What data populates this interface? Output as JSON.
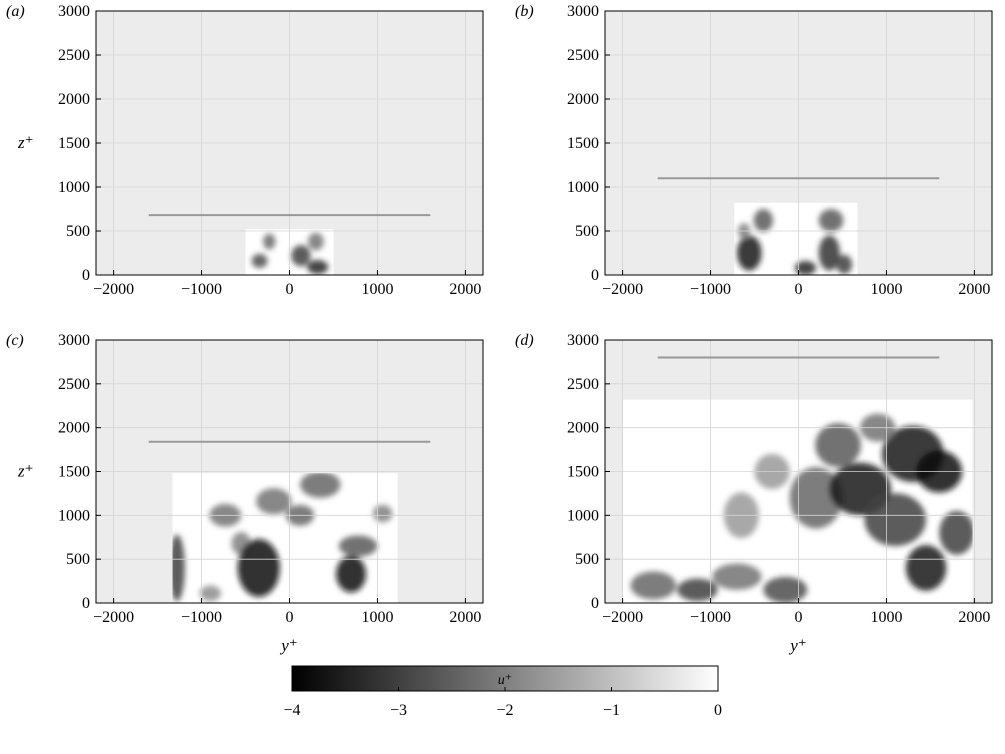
{
  "chart_data": [
    {
      "panel_label": "(a)",
      "type": "heatmap",
      "xlim": [
        -2200,
        2200
      ],
      "ylim": [
        0,
        3000
      ],
      "xticks": [
        -2000,
        -1000,
        0,
        1000,
        2000
      ],
      "yticks": [
        0,
        500,
        1000,
        1500,
        2000,
        2500,
        3000
      ],
      "xlabel": "",
      "ylabel": "z⁺",
      "data_region": {
        "y_range": [
          -500,
          500
        ],
        "z_range": [
          0,
          520
        ]
      },
      "reference_line": {
        "y_range": [
          -1600,
          1600
        ],
        "z": 680
      },
      "dark_patches": [
        {
          "y": -340,
          "z": 160,
          "ry": 90,
          "rz": 80,
          "u": -2.8
        },
        {
          "y": -230,
          "z": 380,
          "ry": 70,
          "rz": 90,
          "u": -2.4
        },
        {
          "y": 130,
          "z": 220,
          "ry": 110,
          "rz": 120,
          "u": -3.0
        },
        {
          "y": 320,
          "z": 90,
          "ry": 120,
          "rz": 80,
          "u": -3.4
        },
        {
          "y": 300,
          "z": 380,
          "ry": 90,
          "rz": 100,
          "u": -2.2
        }
      ]
    },
    {
      "panel_label": "(b)",
      "type": "heatmap",
      "xlim": [
        -2200,
        2200
      ],
      "ylim": [
        0,
        3000
      ],
      "xticks": [
        -2000,
        -1000,
        0,
        1000,
        2000
      ],
      "yticks": [
        0,
        500,
        1000,
        1500,
        2000,
        2500,
        3000
      ],
      "xlabel": "",
      "ylabel": "",
      "data_region": {
        "y_range": [
          -730,
          670
        ],
        "z_range": [
          0,
          820
        ]
      },
      "reference_line": {
        "y_range": [
          -1600,
          1600
        ],
        "z": 1100
      },
      "dark_patches": [
        {
          "y": -560,
          "z": 250,
          "ry": 140,
          "rz": 200,
          "u": -3.6
        },
        {
          "y": -400,
          "z": 620,
          "ry": 110,
          "rz": 130,
          "u": -2.6
        },
        {
          "y": -620,
          "z": 500,
          "ry": 70,
          "rz": 90,
          "u": -2.0
        },
        {
          "y": 80,
          "z": 80,
          "ry": 120,
          "rz": 80,
          "u": -3.4
        },
        {
          "y": 350,
          "z": 250,
          "ry": 120,
          "rz": 200,
          "u": -3.2
        },
        {
          "y": 370,
          "z": 620,
          "ry": 140,
          "rz": 130,
          "u": -2.6
        },
        {
          "y": 520,
          "z": 120,
          "ry": 90,
          "rz": 110,
          "u": -3.0
        }
      ]
    },
    {
      "panel_label": "(c)",
      "type": "heatmap",
      "xlim": [
        -2200,
        2200
      ],
      "ylim": [
        0,
        3000
      ],
      "xticks": [
        -2000,
        -1000,
        0,
        1000,
        2000
      ],
      "yticks": [
        0,
        500,
        1000,
        1500,
        2000,
        2500,
        3000
      ],
      "xlabel": "y⁺",
      "ylabel": "z⁺",
      "data_region": {
        "y_range": [
          -1330,
          1230
        ],
        "z_range": [
          0,
          1480
        ]
      },
      "reference_line": {
        "y_range": [
          -1600,
          1600
        ],
        "z": 1840
      },
      "dark_patches": [
        {
          "y": -1280,
          "z": 400,
          "ry": 90,
          "rz": 380,
          "u": -3.0
        },
        {
          "y": -730,
          "z": 1000,
          "ry": 180,
          "rz": 130,
          "u": -2.2
        },
        {
          "y": -550,
          "z": 680,
          "ry": 110,
          "rz": 130,
          "u": -2.0
        },
        {
          "y": -350,
          "z": 400,
          "ry": 240,
          "rz": 330,
          "u": -3.8
        },
        {
          "y": -180,
          "z": 1160,
          "ry": 200,
          "rz": 150,
          "u": -2.2
        },
        {
          "y": 120,
          "z": 1000,
          "ry": 160,
          "rz": 120,
          "u": -2.4
        },
        {
          "y": 350,
          "z": 1350,
          "ry": 230,
          "rz": 150,
          "u": -2.4
        },
        {
          "y": 780,
          "z": 650,
          "ry": 220,
          "rz": 120,
          "u": -2.6
        },
        {
          "y": 700,
          "z": 330,
          "ry": 170,
          "rz": 210,
          "u": -3.8
        },
        {
          "y": 1060,
          "z": 1020,
          "ry": 110,
          "rz": 100,
          "u": -2.0
        },
        {
          "y": -900,
          "z": 110,
          "ry": 120,
          "rz": 90,
          "u": -1.8
        }
      ]
    },
    {
      "panel_label": "(d)",
      "type": "heatmap",
      "xlim": [
        -2200,
        2200
      ],
      "ylim": [
        0,
        3000
      ],
      "xticks": [
        -2000,
        -1000,
        0,
        1000,
        2000
      ],
      "yticks": [
        0,
        500,
        1000,
        1500,
        2000,
        2500,
        3000
      ],
      "xlabel": "y⁺",
      "ylabel": "",
      "data_region": {
        "y_range": [
          -2000,
          1980
        ],
        "z_range": [
          0,
          2320
        ]
      },
      "reference_line": {
        "y_range": [
          -1600,
          1600
        ],
        "z": 2800
      },
      "dark_patches": [
        {
          "y": -1650,
          "z": 200,
          "ry": 260,
          "rz": 160,
          "u": -2.4
        },
        {
          "y": -1150,
          "z": 150,
          "ry": 230,
          "rz": 130,
          "u": -3.0
        },
        {
          "y": -700,
          "z": 300,
          "ry": 280,
          "rz": 150,
          "u": -2.2
        },
        {
          "y": -650,
          "z": 1000,
          "ry": 200,
          "rz": 260,
          "u": -1.6
        },
        {
          "y": -300,
          "z": 1500,
          "ry": 200,
          "rz": 200,
          "u": -1.6
        },
        {
          "y": -150,
          "z": 150,
          "ry": 250,
          "rz": 150,
          "u": -2.8
        },
        {
          "y": 200,
          "z": 1200,
          "ry": 300,
          "rz": 350,
          "u": -2.4
        },
        {
          "y": 450,
          "z": 1800,
          "ry": 260,
          "rz": 250,
          "u": -2.6
        },
        {
          "y": 700,
          "z": 1300,
          "ry": 350,
          "rz": 300,
          "u": -3.6
        },
        {
          "y": 1100,
          "z": 950,
          "ry": 350,
          "rz": 300,
          "u": -3.0
        },
        {
          "y": 1300,
          "z": 1700,
          "ry": 350,
          "rz": 320,
          "u": -3.6
        },
        {
          "y": 1600,
          "z": 1500,
          "ry": 260,
          "rz": 240,
          "u": -3.8
        },
        {
          "y": 1450,
          "z": 400,
          "ry": 230,
          "rz": 260,
          "u": -3.6
        },
        {
          "y": 1800,
          "z": 800,
          "ry": 200,
          "rz": 250,
          "u": -3.0
        },
        {
          "y": 900,
          "z": 2000,
          "ry": 200,
          "rz": 160,
          "u": -2.2
        }
      ]
    }
  ],
  "colorbar": {
    "label": "u⁺",
    "ticks": [
      -4,
      -3,
      -2,
      -1,
      0
    ],
    "range": [
      -4,
      0
    ],
    "colormap": [
      "#000000",
      "#ffffff"
    ]
  },
  "colors": {
    "out_of_domain_fill": "#ececec",
    "grid": "#d4d4d4",
    "reference_line": "#999999",
    "axes": "#000000"
  }
}
